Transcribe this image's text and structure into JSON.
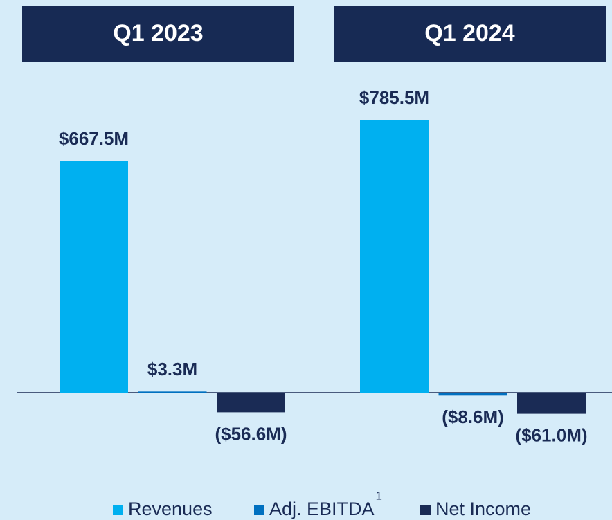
{
  "chart_data": {
    "type": "bar",
    "categories": [
      "Q1 2023",
      "Q1 2024"
    ],
    "series": [
      {
        "name": "Revenues",
        "color": "#00b0f0",
        "values": [
          667.5,
          785.5
        ],
        "value_labels": [
          "$667.5M",
          "$785.5M"
        ]
      },
      {
        "name": "Adj. EBITDA",
        "footnote": "1",
        "color": "#0070c0",
        "values": [
          3.3,
          -8.6
        ],
        "value_labels": [
          "$3.3M",
          "($8.6M)"
        ]
      },
      {
        "name": "Net Income",
        "color": "#1a2b55",
        "values": [
          -56.6,
          -61.0
        ],
        "value_labels": [
          "($56.6M)",
          "($61.0M)"
        ]
      }
    ]
  }
}
